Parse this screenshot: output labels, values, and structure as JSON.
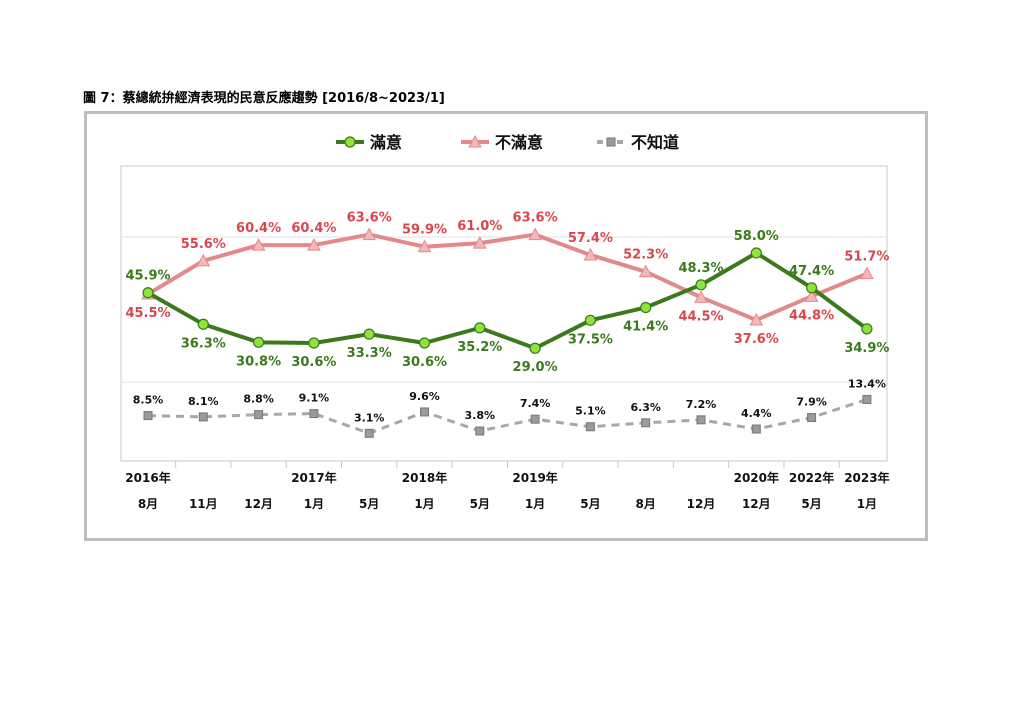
{
  "caption": "圖 7：蔡總統拚經濟表現的民意反應趨勢 [2016/8~2023/1]",
  "chart_data": {
    "type": "line",
    "title": "",
    "legend_position": "top",
    "grid": false,
    "ylim": [
      0,
      75
    ],
    "categories": [
      {
        "year": "2016年",
        "month": "8月"
      },
      {
        "year": "",
        "month": "11月"
      },
      {
        "year": "",
        "month": "12月"
      },
      {
        "year": "2017年",
        "month": "1月"
      },
      {
        "year": "",
        "month": "5月"
      },
      {
        "year": "2018年",
        "month": "1月"
      },
      {
        "year": "",
        "month": "5月"
      },
      {
        "year": "2019年",
        "month": "1月"
      },
      {
        "year": "",
        "month": "5月"
      },
      {
        "year": "",
        "month": "8月"
      },
      {
        "year": "",
        "month": "12月"
      },
      {
        "year": "2020年",
        "month": "12月"
      },
      {
        "year": "2022年",
        "month": "5月"
      },
      {
        "year": "2023年",
        "month": "1月"
      }
    ],
    "series": [
      {
        "name": "滿意",
        "color": "#3a7a1c",
        "marker": "circle",
        "marker_fill": "#8fe33a",
        "label_color": "#3a7a1c",
        "values": [
          45.9,
          36.3,
          30.8,
          30.6,
          33.3,
          30.6,
          35.2,
          29.0,
          37.5,
          41.4,
          48.3,
          58.0,
          47.4,
          34.9
        ],
        "labels": [
          "45.9%",
          "36.3%",
          "30.8%",
          "30.6%",
          "33.3%",
          "30.6%",
          "35.2%",
          "29.0%",
          "37.5%",
          "41.4%",
          "48.3%",
          "58.0%",
          "47.4%",
          "34.9%"
        ],
        "label_pos": [
          "above",
          "below",
          "below",
          "below",
          "below",
          "below",
          "below",
          "below",
          "below",
          "below",
          "above",
          "above",
          "above",
          "below"
        ]
      },
      {
        "name": "不滿意",
        "color": "#e4898b",
        "marker": "triangle",
        "marker_fill": "#f4b7b9",
        "label_color": "#d9474d",
        "values": [
          45.5,
          55.6,
          60.4,
          60.4,
          63.6,
          59.9,
          61.0,
          63.6,
          57.4,
          52.3,
          44.5,
          37.6,
          44.8,
          51.7
        ],
        "labels": [
          "45.5%",
          "55.6%",
          "60.4%",
          "60.4%",
          "63.6%",
          "59.9%",
          "61.0%",
          "63.6%",
          "57.4%",
          "52.3%",
          "44.5%",
          "37.6%",
          "44.8%",
          "51.7%"
        ],
        "label_pos": [
          "below",
          "above",
          "above",
          "above",
          "above",
          "above",
          "above",
          "above",
          "above",
          "above",
          "below",
          "below",
          "below",
          "above"
        ]
      },
      {
        "name": "不知道",
        "color": "#a8a8a8",
        "marker": "square",
        "marker_fill": "#9a9a9a",
        "label_color": "#111111",
        "dashed": true,
        "values": [
          8.5,
          8.1,
          8.8,
          9.1,
          3.1,
          9.6,
          3.8,
          7.4,
          5.1,
          6.3,
          7.2,
          4.4,
          7.9,
          13.4
        ],
        "labels": [
          "8.5%",
          "8.1%",
          "8.8%",
          "9.1%",
          "3.1%",
          "9.6%",
          "3.8%",
          "7.4%",
          "5.1%",
          "6.3%",
          "7.2%",
          "4.4%",
          "7.9%",
          "13.4%"
        ],
        "label_pos": [
          "above",
          "above",
          "above",
          "above",
          "above",
          "above",
          "above",
          "above",
          "above",
          "above",
          "above",
          "above",
          "above",
          "above"
        ]
      }
    ]
  }
}
